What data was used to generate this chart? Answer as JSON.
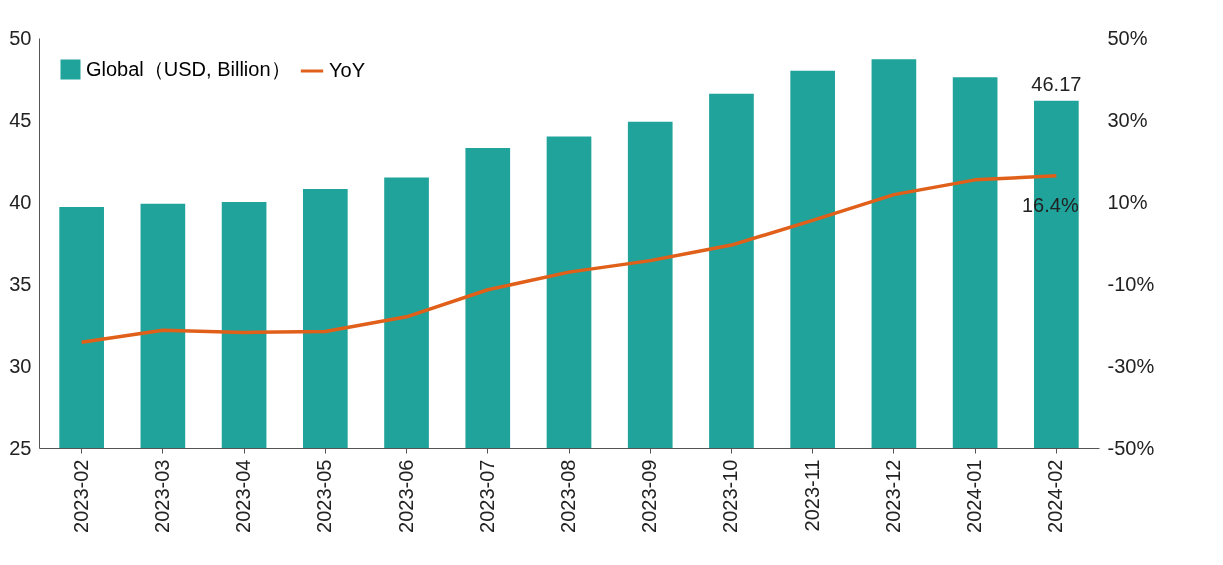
{
  "chart_data": {
    "type": "bar",
    "categories": [
      "2023-02",
      "2023-03",
      "2023-04",
      "2023-05",
      "2023-06",
      "2023-07",
      "2023-08",
      "2023-09",
      "2023-10",
      "2023-11",
      "2023-12",
      "2024-01",
      "2024-02"
    ],
    "series": [
      {
        "name": "Global（USD, Billion）",
        "color": "#1fa39b",
        "values": [
          39.7,
          39.9,
          40.0,
          40.8,
          41.5,
          43.3,
          44.0,
          44.9,
          46.6,
          48.0,
          48.7,
          47.6,
          46.17
        ],
        "value_labels": [
          null,
          null,
          null,
          null,
          null,
          null,
          null,
          null,
          null,
          null,
          null,
          null,
          "46.17"
        ]
      },
      {
        "name": "YoY",
        "type": "line",
        "axis": "y2",
        "color": "#e0601a",
        "values": [
          -24.2,
          -21.3,
          -21.8,
          -21.6,
          -18.0,
          -11.4,
          -7.1,
          -4.3,
          -0.5,
          5.5,
          11.8,
          15.4,
          16.4
        ],
        "value_labels": [
          null,
          null,
          null,
          null,
          null,
          null,
          null,
          null,
          null,
          null,
          null,
          null,
          "16.4%"
        ]
      }
    ],
    "ylim": [
      25,
      50
    ],
    "yticks": [
      25,
      30,
      35,
      40,
      45,
      50
    ],
    "y2lim": [
      -50,
      50
    ],
    "y2ticks": [
      {
        "value": -50,
        "label": "-50%"
      },
      {
        "value": -30,
        "label": "-30%"
      },
      {
        "value": -10,
        "label": "-10%"
      },
      {
        "value": 10,
        "label": "10%"
      },
      {
        "value": 30,
        "label": "30%"
      },
      {
        "value": 50,
        "label": "50%"
      }
    ],
    "legend": "top left"
  }
}
